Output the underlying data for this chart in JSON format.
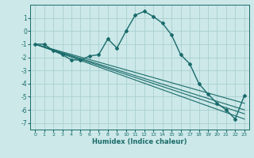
{
  "xlabel": "Humidex (Indice chaleur)",
  "background_color": "#cce8e8",
  "grid_color": "#aacfcf",
  "line_color": "#1a6b6b",
  "xlim": [
    -0.5,
    23.5
  ],
  "ylim": [
    -7.5,
    2.0
  ],
  "yticks": [
    -7,
    -6,
    -5,
    -4,
    -3,
    -2,
    -1,
    0,
    1
  ],
  "xticks": [
    0,
    1,
    2,
    3,
    4,
    5,
    6,
    7,
    8,
    9,
    10,
    11,
    12,
    13,
    14,
    15,
    16,
    17,
    18,
    19,
    20,
    21,
    22,
    23
  ],
  "main_line": {
    "x": [
      0,
      1,
      2,
      3,
      4,
      5,
      6,
      7,
      8,
      9,
      10,
      11,
      12,
      13,
      14,
      15,
      16,
      17,
      18,
      19,
      20,
      21,
      22,
      23
    ],
    "y": [
      -1.0,
      -1.0,
      -1.5,
      -1.8,
      -2.2,
      -2.2,
      -1.9,
      -1.8,
      -0.6,
      -1.3,
      0.0,
      1.2,
      1.5,
      1.1,
      0.6,
      -0.3,
      -1.8,
      -2.5,
      -4.0,
      -4.8,
      -5.5,
      -6.0,
      -6.7,
      -4.9
    ]
  },
  "straight_lines": [
    {
      "x": [
        0,
        23
      ],
      "y": [
        -1.0,
        -6.7
      ]
    },
    {
      "x": [
        0,
        23
      ],
      "y": [
        -1.0,
        -5.5
      ]
    },
    {
      "x": [
        0,
        23
      ],
      "y": [
        -1.0,
        -6.0
      ]
    },
    {
      "x": [
        0,
        23
      ],
      "y": [
        -1.0,
        -6.3
      ]
    }
  ]
}
